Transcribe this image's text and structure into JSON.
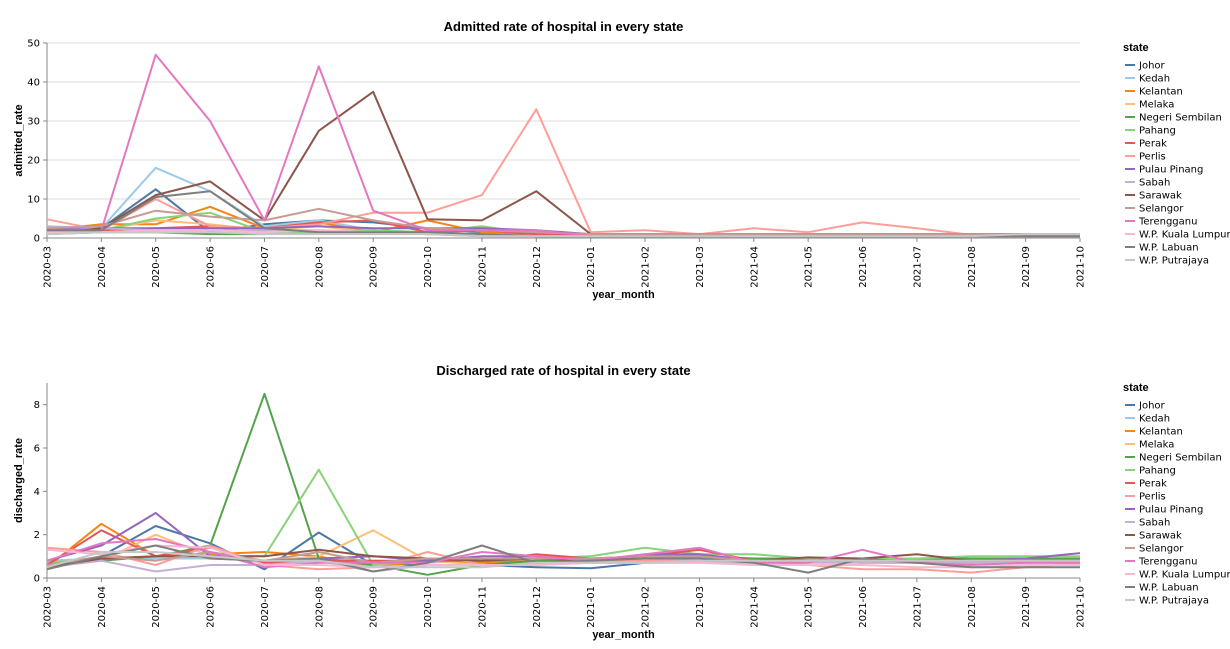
{
  "colors": {
    "Johor": "#4c78a8",
    "Kedah": "#9ecae9",
    "Kelantan": "#f58518",
    "Melaka": "#ffbf79",
    "Negeri Sembilan": "#54a24b",
    "Pahang": "#88d27a",
    "Perak": "#e45756",
    "Perlis": "#ff9d98",
    "Pulau Pinang": "#9467bd",
    "Sabah": "#c5b0d5",
    "Sarawak": "#8c564b",
    "Selangor": "#c49c94",
    "Terengganu": "#e377c2",
    "W.P. Kuala Lumpur": "#f7b6d2",
    "W.P. Labuan": "#7f7f7f",
    "W.P. Putrajaya": "#c7c7c7"
  },
  "chart_data": [
    {
      "type": "line",
      "title": "Admitted rate of hospital in every state",
      "xlabel": "year_month",
      "ylabel": "admitted_rate",
      "ylim": [
        0,
        50
      ],
      "yticks": [
        0,
        10,
        20,
        30,
        40,
        50
      ],
      "legend_title": "state",
      "legend_position": "right",
      "grid": true,
      "categories": [
        "2020-03",
        "2020-04",
        "2020-05",
        "2020-06",
        "2020-07",
        "2020-08",
        "2020-09",
        "2020-10",
        "2020-11",
        "2020-12",
        "2021-01",
        "2021-02",
        "2021-03",
        "2021-04",
        "2021-05",
        "2021-06",
        "2021-07",
        "2021-08",
        "2021-09",
        "2021-10"
      ],
      "series": [
        {
          "name": "Johor",
          "values": [
            1.5,
            2.5,
            12.5,
            1.5,
            3.5,
            4.5,
            4,
            2.5,
            1.5,
            0.5,
            0.5,
            0.5,
            0.5,
            0.5,
            0.5,
            0.5,
            0.5,
            0.5,
            0.5,
            0.5
          ]
        },
        {
          "name": "Kedah",
          "values": [
            2,
            2.5,
            18,
            12,
            3,
            4.5,
            2,
            1.5,
            1,
            0.5,
            0.5,
            0.5,
            0.5,
            0.5,
            0.5,
            0.5,
            0.5,
            0.5,
            0.5,
            0.5
          ]
        },
        {
          "name": "Kelantan",
          "values": [
            2,
            3.5,
            3.5,
            8,
            2.5,
            4,
            1.5,
            4.5,
            1.5,
            1,
            0.5,
            0.5,
            0.5,
            0.5,
            0.5,
            0.5,
            0.5,
            0.5,
            0.5,
            0.5
          ]
        },
        {
          "name": "Melaka",
          "values": [
            1.5,
            2,
            4.5,
            3.5,
            2,
            3,
            1.5,
            1,
            1,
            0.5,
            0.5,
            0.5,
            0.5,
            0.5,
            0.5,
            0.5,
            0.5,
            0.5,
            0.5,
            0.5
          ]
        },
        {
          "name": "Negeri Sembilan",
          "values": [
            1,
            1.5,
            1.5,
            1,
            1,
            1.5,
            1.5,
            1,
            0.5,
            0.5,
            0.5,
            0.5,
            0.5,
            0.5,
            0.5,
            0.5,
            0.5,
            0.5,
            0.5,
            0.5
          ]
        },
        {
          "name": "Pahang",
          "values": [
            1.5,
            2,
            5,
            6.5,
            1.5,
            1.5,
            2,
            1.5,
            3,
            1,
            0.5,
            0.5,
            0.5,
            0.5,
            0.5,
            0.5,
            0.5,
            0.5,
            0.5,
            0.5
          ]
        },
        {
          "name": "Perak",
          "values": [
            1.5,
            2,
            2.5,
            3,
            2.5,
            4,
            4.5,
            1.5,
            2,
            1,
            0.5,
            0.5,
            0.5,
            0.5,
            0.5,
            0.5,
            0.5,
            0.5,
            0.5,
            0.5
          ]
        },
        {
          "name": "Perlis",
          "values": [
            4.8,
            2,
            10,
            3,
            2.5,
            3.5,
            6.5,
            6.5,
            11,
            33,
            1.5,
            2,
            1,
            2.5,
            1.5,
            4,
            2.5,
            0.8,
            0.8,
            0.8
          ]
        },
        {
          "name": "Pulau Pinang",
          "values": [
            2.5,
            2.5,
            2.5,
            2.5,
            2.5,
            3,
            2.5,
            2.5,
            2.5,
            2,
            1,
            1,
            1,
            1,
            1,
            1,
            1,
            1,
            1,
            1
          ]
        },
        {
          "name": "Sabah",
          "values": [
            3,
            2.5,
            2,
            2,
            2,
            2,
            1.5,
            1,
            1,
            0.5,
            0.5,
            0.5,
            0.5,
            0.5,
            0.5,
            0.5,
            0.5,
            0.5,
            0.5,
            0.5
          ]
        },
        {
          "name": "Sarawak",
          "values": [
            1,
            2.5,
            11,
            14.5,
            4.5,
            27.5,
            37.5,
            4.8,
            4.5,
            12,
            1,
            1,
            1,
            1,
            1,
            1,
            1,
            1,
            1,
            1
          ]
        },
        {
          "name": "Selangor",
          "values": [
            2.5,
            3,
            7,
            5.5,
            4.5,
            7.5,
            4.5,
            2.5,
            2,
            1.5,
            1,
            1,
            1,
            1,
            1,
            1,
            1,
            1,
            1,
            1
          ]
        },
        {
          "name": "Terengganu",
          "values": [
            1.5,
            2,
            47,
            30,
            4.5,
            44,
            7,
            2,
            2,
            2,
            0.5,
            0.5,
            0.5,
            0.5,
            0.5,
            0.5,
            0.5,
            0.5,
            0.5,
            0.5
          ]
        },
        {
          "name": "W.P. Kuala Lumpur",
          "values": [
            1.5,
            1.5,
            2,
            2,
            1.5,
            2,
            1.5,
            1,
            1,
            0.5,
            0.5,
            0.5,
            0.5,
            0.5,
            0.5,
            0.5,
            0.5,
            0.5,
            0.5,
            0.5
          ]
        },
        {
          "name": "W.P. Labuan",
          "values": [
            2,
            2,
            10.5,
            12,
            2.5,
            1.5,
            1.5,
            1.5,
            1,
            0.5,
            0.5,
            0.5,
            0.5,
            0.5,
            0.5,
            0.5,
            0.5,
            0.5,
            0.5,
            0.5
          ]
        },
        {
          "name": "W.P. Putrajaya",
          "values": [
            1,
            1.5,
            1.5,
            1.5,
            1,
            1,
            1,
            1,
            0.5,
            0.5,
            0.5,
            0.5,
            0.5,
            0.5,
            0.5,
            0.5,
            0.5,
            0.5,
            1,
            1
          ]
        }
      ]
    },
    {
      "type": "line",
      "title": "Discharged rate of hospital in every state",
      "xlabel": "year_month",
      "ylabel": "discharged_rate",
      "ylim": [
        0,
        9
      ],
      "yticks": [
        0,
        2,
        4,
        6,
        8
      ],
      "legend_title": "state",
      "legend_position": "right",
      "grid": false,
      "categories": [
        "2020-03",
        "2020-04",
        "2020-05",
        "2020-06",
        "2020-07",
        "2020-08",
        "2020-09",
        "2020-10",
        "2020-11",
        "2020-12",
        "2021-01",
        "2021-02",
        "2021-03",
        "2021-04",
        "2021-05",
        "2021-06",
        "2021-07",
        "2021-08",
        "2021-09",
        "2021-10"
      ],
      "series": [
        {
          "name": "Johor",
          "values": [
            0.5,
            1,
            2.4,
            1.6,
            0.4,
            2.1,
            0.6,
            0.6,
            0.6,
            0.5,
            0.45,
            0.7,
            0.75,
            0.7,
            0.8,
            0.8,
            0.75,
            0.7,
            0.75,
            0.8
          ]
        },
        {
          "name": "Kedah",
          "values": [
            0.8,
            0.9,
            0.9,
            0.9,
            0.8,
            0.9,
            0.8,
            0.7,
            0.8,
            0.8,
            0.8,
            0.8,
            0.8,
            0.8,
            0.8,
            0.8,
            0.8,
            0.8,
            0.8,
            0.8
          ]
        },
        {
          "name": "Kelantan",
          "values": [
            0.5,
            2.5,
            1,
            1.1,
            1.2,
            1,
            0.5,
            0.8,
            0.7,
            0.8,
            0.8,
            0.9,
            0.9,
            0.8,
            0.8,
            0.7,
            0.7,
            0.7,
            0.8,
            0.8
          ]
        },
        {
          "name": "Melaka",
          "values": [
            0.7,
            0.8,
            2,
            1,
            0.8,
            1,
            2.2,
            0.8,
            0.6,
            0.7,
            0.8,
            0.9,
            0.9,
            0.8,
            0.8,
            0.8,
            0.8,
            0.8,
            0.8,
            0.8
          ]
        },
        {
          "name": "Negeri Sembilan",
          "values": [
            0.6,
            0.8,
            1,
            1.5,
            8.5,
            0.9,
            0.6,
            0.15,
            0.6,
            0.8,
            0.8,
            1,
            1,
            0.9,
            0.9,
            0.9,
            0.9,
            0.9,
            0.9,
            0.9
          ]
        },
        {
          "name": "Pahang",
          "values": [
            0.7,
            0.9,
            1,
            1,
            1,
            5,
            0.6,
            0.8,
            0.9,
            0.9,
            1,
            1.4,
            1.1,
            1.1,
            0.9,
            0.9,
            0.9,
            1,
            1,
            1
          ]
        },
        {
          "name": "Perak",
          "values": [
            0.6,
            2.2,
            1,
            1.4,
            0.7,
            0.8,
            0.8,
            0.8,
            0.8,
            1.1,
            0.9,
            1,
            1.3,
            0.8,
            0.8,
            0.8,
            0.8,
            0.7,
            0.8,
            0.8
          ]
        },
        {
          "name": "Perlis",
          "values": [
            1.4,
            1.2,
            0.6,
            1.5,
            0.6,
            0.4,
            0.5,
            1.2,
            0.6,
            0.6,
            0.8,
            0.8,
            0.9,
            0.8,
            0.6,
            0.4,
            0.4,
            0.25,
            0.5,
            0.7
          ]
        },
        {
          "name": "Pulau Pinang",
          "values": [
            0.8,
            1.5,
            3,
            1,
            0.8,
            0.9,
            1,
            0.8,
            1,
            1,
            0.8,
            1.1,
            1.1,
            0.8,
            0.8,
            0.8,
            0.8,
            0.8,
            0.9,
            1.15
          ]
        },
        {
          "name": "Sabah",
          "values": [
            0.5,
            0.8,
            0.3,
            0.6,
            0.6,
            0.8,
            0.3,
            0.6,
            0.6,
            0.6,
            0.7,
            0.7,
            0.7,
            0.7,
            0.7,
            0.7,
            0.7,
            0.7,
            0.7,
            0.7
          ]
        },
        {
          "name": "Sarawak",
          "values": [
            0.5,
            0.9,
            1,
            1,
            1,
            1.3,
            1,
            0.9,
            0.8,
            0.9,
            0.8,
            1,
            1,
            0.8,
            0.95,
            0.9,
            1.1,
            0.8,
            0.8,
            0.8
          ]
        },
        {
          "name": "Selangor",
          "values": [
            0.6,
            1,
            0.8,
            1.2,
            0.8,
            1.2,
            0.7,
            0.9,
            0.9,
            0.9,
            0.9,
            1,
            1,
            0.8,
            0.8,
            0.8,
            0.8,
            0.8,
            0.8,
            0.8
          ]
        },
        {
          "name": "Terengganu",
          "values": [
            0.8,
            1.6,
            1.8,
            1.2,
            0.5,
            0.7,
            0.7,
            0.7,
            1.2,
            1,
            0.8,
            1.1,
            1.4,
            0.7,
            0.7,
            1.3,
            0.7,
            0.6,
            0.7,
            0.7
          ]
        },
        {
          "name": "W.P. Kuala Lumpur",
          "values": [
            1.3,
            1.1,
            1.5,
            1.4,
            0.6,
            0.6,
            0.5,
            0.6,
            0.6,
            0.6,
            0.7,
            0.7,
            0.7,
            0.6,
            0.6,
            0.6,
            0.5,
            0.5,
            0.6,
            0.6
          ]
        },
        {
          "name": "W.P. Labuan",
          "values": [
            0.4,
            1,
            1.5,
            0.9,
            0.8,
            0.9,
            0.3,
            0.7,
            1.5,
            0.7,
            0.8,
            0.9,
            0.9,
            0.7,
            0.25,
            0.9,
            0.7,
            0.5,
            0.5,
            0.5
          ]
        },
        {
          "name": "W.P. Putrajaya",
          "values": [
            0.5,
            1.2,
            1.2,
            1,
            0.8,
            0.8,
            0.5,
            0.5,
            0.5,
            0.7,
            0.7,
            0.7,
            0.8,
            0.8,
            0.8,
            0.8,
            0.8,
            0.8,
            0.8,
            0.8
          ]
        }
      ]
    }
  ]
}
